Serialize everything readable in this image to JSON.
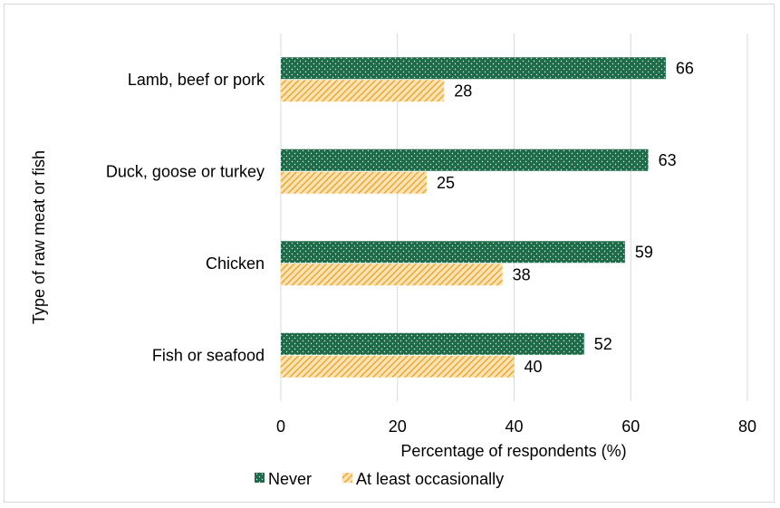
{
  "chart_data": {
    "type": "bar",
    "orientation": "horizontal",
    "categories": [
      "Lamb, beef or pork",
      "Duck, goose or turkey",
      "Chicken",
      "Fish or seafood"
    ],
    "series": [
      {
        "name": "Never",
        "values": [
          66,
          63,
          59,
          52
        ],
        "color": "#1e6b4a"
      },
      {
        "name": "At least occasionally",
        "values": [
          28,
          25,
          38,
          40
        ],
        "color": "#f0a830"
      }
    ],
    "title": "",
    "xlabel": "Percentage of respondents (%)",
    "ylabel": "Type of raw meat or fish",
    "xlim": [
      0,
      80
    ],
    "xticks": [
      0,
      20,
      40,
      60,
      80
    ],
    "grid": true,
    "legend_position": "bottom"
  }
}
